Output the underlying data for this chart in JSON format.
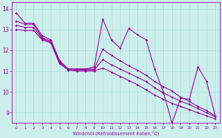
{
  "background_color": "#cceeed",
  "line_color": "#990099",
  "grid_color": "#aaddcc",
  "ylim": [
    8.5,
    14.3
  ],
  "xlim": [
    -0.5,
    23.5
  ],
  "yticks": [
    9,
    10,
    11,
    12,
    13,
    14
  ],
  "xticks": [
    0,
    1,
    2,
    3,
    4,
    5,
    6,
    7,
    8,
    9,
    10,
    11,
    12,
    13,
    14,
    15,
    16,
    17,
    18,
    19,
    20,
    21,
    22,
    23
  ],
  "xlabel": "Windchill (Refroidissement éolien,°C)",
  "line1": [
    13.8,
    13.3,
    13.3,
    12.7,
    12.5,
    11.5,
    11.1,
    11.1,
    11.1,
    11.2,
    13.5,
    12.5,
    12.1,
    13.05,
    12.75,
    12.5,
    11.1,
    10.0,
    8.5,
    9.7,
    9.65,
    11.2,
    10.5,
    8.85
  ],
  "line2": [
    13.4,
    13.25,
    13.25,
    12.6,
    12.45,
    11.45,
    11.1,
    11.1,
    11.1,
    11.1,
    12.05,
    11.75,
    11.5,
    11.25,
    11.05,
    10.8,
    10.5,
    10.25,
    10.05,
    9.75,
    9.55,
    9.3,
    9.1,
    8.85
  ],
  "line3": [
    13.2,
    13.1,
    13.1,
    12.55,
    12.4,
    11.4,
    11.1,
    11.05,
    11.05,
    11.05,
    11.55,
    11.3,
    11.1,
    10.9,
    10.7,
    10.5,
    10.2,
    9.95,
    9.75,
    9.55,
    9.4,
    9.2,
    9.0,
    8.8
  ],
  "line4": [
    13.0,
    12.95,
    12.95,
    12.5,
    12.35,
    11.35,
    11.05,
    11.0,
    11.0,
    11.0,
    11.15,
    10.95,
    10.75,
    10.55,
    10.35,
    10.1,
    9.85,
    9.65,
    9.45,
    9.3,
    9.15,
    9.0,
    8.85,
    8.7
  ]
}
